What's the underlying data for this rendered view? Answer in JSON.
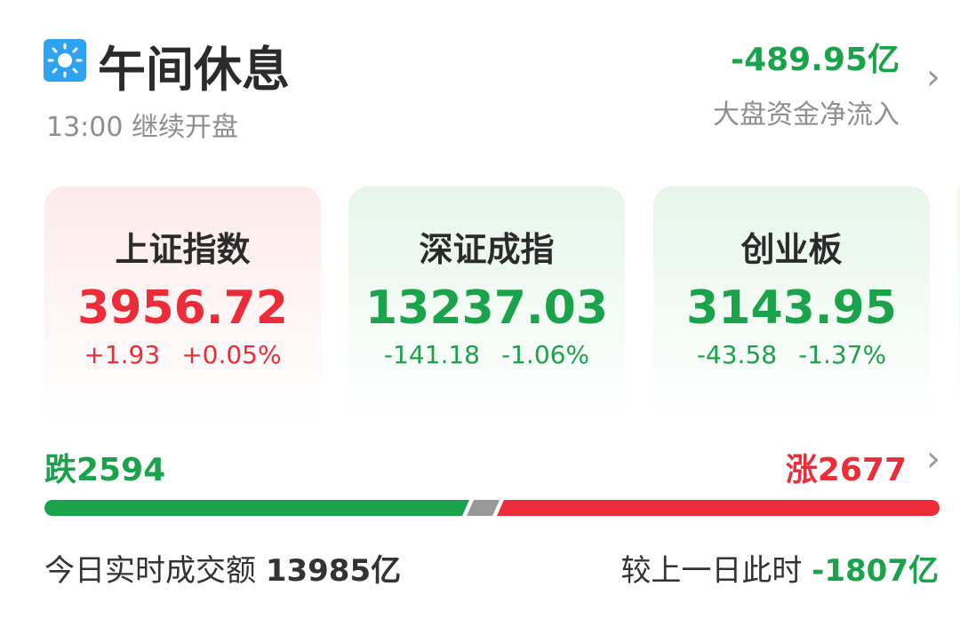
{
  "header": {
    "icon": "sun-icon",
    "title": "午间休息",
    "subtitle": "13:00 继续开盘",
    "net_flow": "-489.95亿",
    "net_flow_label": "大盘资金净流入"
  },
  "indices": [
    {
      "name": "上证指数",
      "value": "3956.72",
      "change": "+1.93",
      "pct": "+0.05%",
      "direction": "up"
    },
    {
      "name": "深证成指",
      "value": "13237.03",
      "change": "-141.18",
      "pct": "-1.06%",
      "direction": "down"
    },
    {
      "name": "创业板",
      "value": "3143.95",
      "change": "-43.58",
      "pct": "-1.37%",
      "direction": "down"
    }
  ],
  "breadth": {
    "fall_label": "跌2594",
    "rise_label": "涨2677",
    "fall": 2594,
    "rise": 2677
  },
  "turnover": {
    "label": "今日实时成交额",
    "value": "13985亿",
    "compare_label": "较上一日此时",
    "compare_value": "-1807亿"
  },
  "colors": {
    "up": "#ec2c39",
    "down": "#1aa34a",
    "flat": "#999999"
  }
}
